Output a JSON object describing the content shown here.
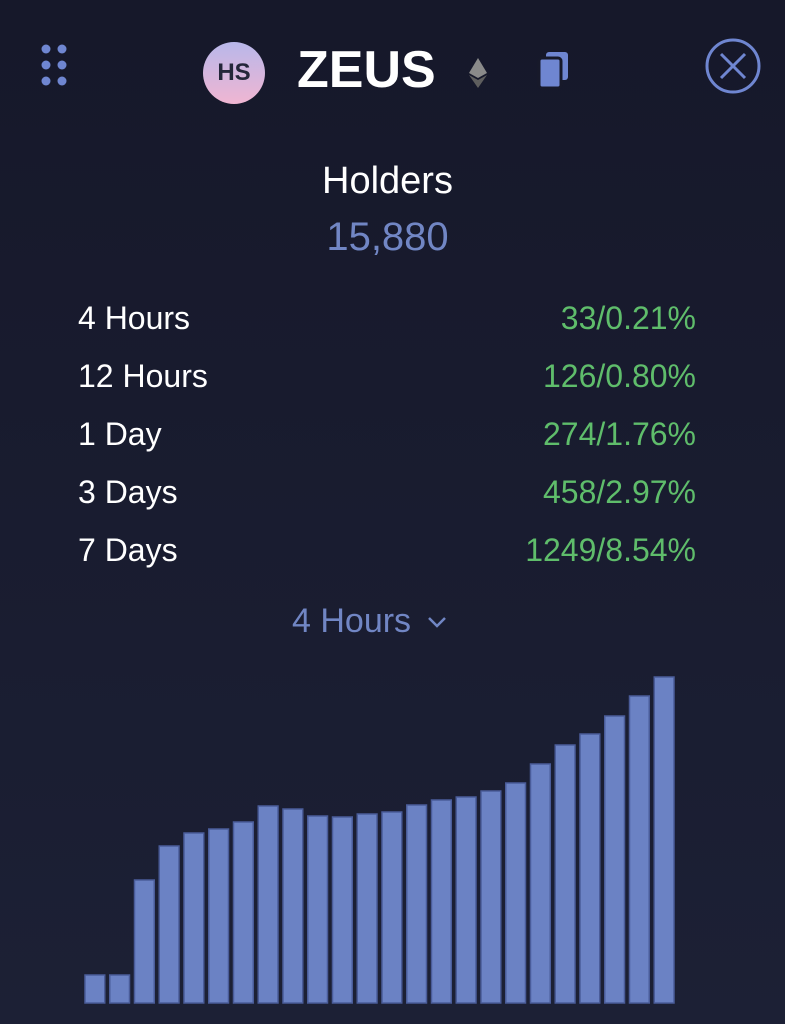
{
  "header": {
    "avatar": "HS",
    "title": "ZEUS"
  },
  "stats": {
    "title": "Holders",
    "total": "15,880",
    "rows": [
      {
        "label": "4 Hours",
        "value": "33/0.21%"
      },
      {
        "label": "12 Hours",
        "value": "126/0.80%"
      },
      {
        "label": "1 Day",
        "value": "274/1.76%"
      },
      {
        "label": "3 Days",
        "value": "458/2.97%"
      },
      {
        "label": "7 Days",
        "value": "1249/8.54%"
      }
    ]
  },
  "selector": {
    "label": "4 Hours"
  },
  "chart_data": {
    "type": "bar",
    "color": "#6b82c4",
    "values": [
      28,
      28,
      123,
      157,
      170,
      174,
      181,
      197,
      194,
      187,
      186,
      189,
      191,
      198,
      203,
      206,
      212,
      220,
      239,
      258,
      269,
      287,
      307,
      326
    ]
  }
}
